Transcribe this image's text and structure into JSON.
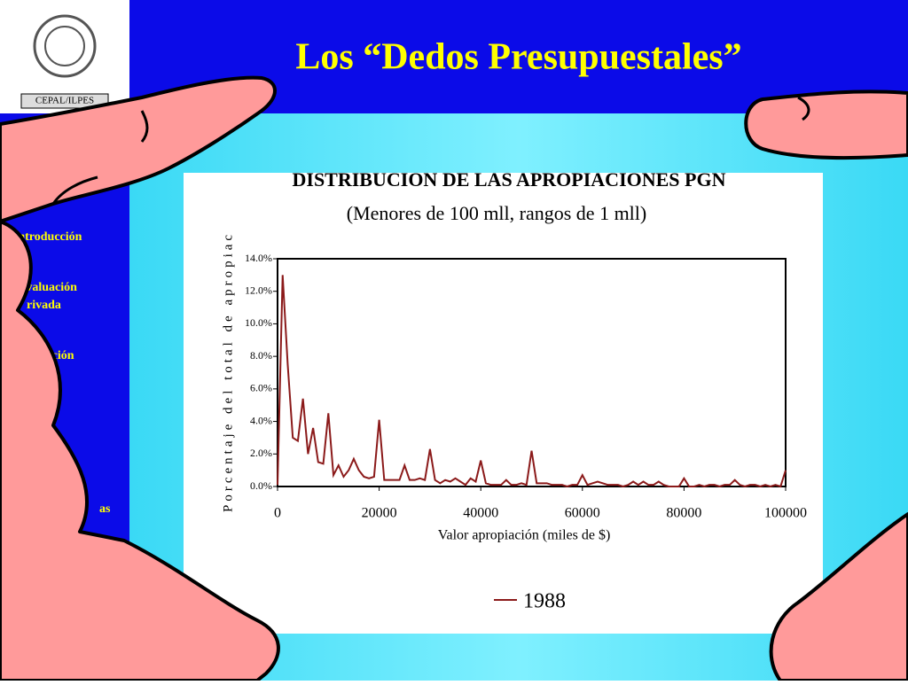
{
  "slide": {
    "title": "Los “Dedos Presupuestales”",
    "logo_caption": "CEPAL/ILPES",
    "sidebar": [
      "•Introducción",
      "Evaluación",
      "rivada",
      "luación",
      "as"
    ]
  },
  "chart_data": {
    "type": "line",
    "title": "DISTRIBUCION DE LAS APROPIACIONES PGN",
    "subtitle": "(Menores de 100 mll, rangos de 1 mll)",
    "xlabel": "Valor apropiación (miles de $)",
    "ylabel": "Porcentaje del total de apropiac",
    "x": [
      0,
      1000,
      2000,
      3000,
      4000,
      5000,
      6000,
      7000,
      8000,
      9000,
      10000,
      11000,
      12000,
      13000,
      14000,
      15000,
      16000,
      17000,
      18000,
      19000,
      20000,
      21000,
      22000,
      23000,
      24000,
      25000,
      26000,
      27000,
      28000,
      29000,
      30000,
      31000,
      32000,
      33000,
      34000,
      35000,
      36000,
      37000,
      38000,
      39000,
      40000,
      41000,
      42000,
      43000,
      44000,
      45000,
      46000,
      47000,
      48000,
      49000,
      50000,
      51000,
      52000,
      53000,
      54000,
      55000,
      56000,
      57000,
      58000,
      59000,
      60000,
      61000,
      62000,
      63000,
      64000,
      65000,
      66000,
      67000,
      68000,
      69000,
      70000,
      71000,
      72000,
      73000,
      74000,
      75000,
      76000,
      77000,
      78000,
      79000,
      80000,
      81000,
      82000,
      83000,
      84000,
      85000,
      86000,
      87000,
      88000,
      89000,
      90000,
      91000,
      92000,
      93000,
      94000,
      95000,
      96000,
      97000,
      98000,
      99000,
      100000
    ],
    "series": [
      {
        "name": "1988",
        "color": "#8b1a1a",
        "values": [
          0.1,
          13.0,
          7.5,
          3.0,
          2.8,
          5.4,
          2.0,
          3.6,
          1.5,
          1.4,
          4.5,
          0.7,
          1.3,
          0.6,
          1.0,
          1.7,
          1.0,
          0.6,
          0.5,
          0.6,
          4.1,
          0.4,
          0.4,
          0.4,
          0.4,
          1.3,
          0.4,
          0.4,
          0.5,
          0.4,
          2.3,
          0.4,
          0.2,
          0.4,
          0.3,
          0.5,
          0.3,
          0.1,
          0.5,
          0.3,
          1.6,
          0.2,
          0.1,
          0.1,
          0.1,
          0.4,
          0.1,
          0.1,
          0.2,
          0.1,
          2.2,
          0.2,
          0.2,
          0.2,
          0.1,
          0.1,
          0.1,
          0.0,
          0.1,
          0.1,
          0.7,
          0.1,
          0.2,
          0.3,
          0.2,
          0.1,
          0.1,
          0.1,
          0.0,
          0.1,
          0.3,
          0.1,
          0.3,
          0.1,
          0.1,
          0.3,
          0.1,
          0.0,
          0.0,
          0.0,
          0.5,
          0.0,
          0.0,
          0.1,
          0.0,
          0.1,
          0.1,
          0.0,
          0.1,
          0.1,
          0.4,
          0.1,
          0.0,
          0.1,
          0.1,
          0.0,
          0.1,
          0.0,
          0.1,
          0.0,
          1.0
        ]
      }
    ],
    "xlim": [
      0,
      100000
    ],
    "xticks": [
      0,
      20000,
      40000,
      60000,
      80000,
      100000
    ],
    "ylim": [
      0,
      14
    ],
    "yticks": [
      {
        "value": 0,
        "label": "0.0%"
      },
      {
        "value": 2,
        "label": "2.0%"
      },
      {
        "value": 4,
        "label": "4.0%"
      },
      {
        "value": 6,
        "label": "6.0%"
      },
      {
        "value": 8,
        "label": "8.0%"
      },
      {
        "value": 10,
        "label": "10.0%"
      },
      {
        "value": 12,
        "label": "12.0%"
      },
      {
        "value": 14,
        "label": "14.0%"
      }
    ],
    "grid": false
  }
}
